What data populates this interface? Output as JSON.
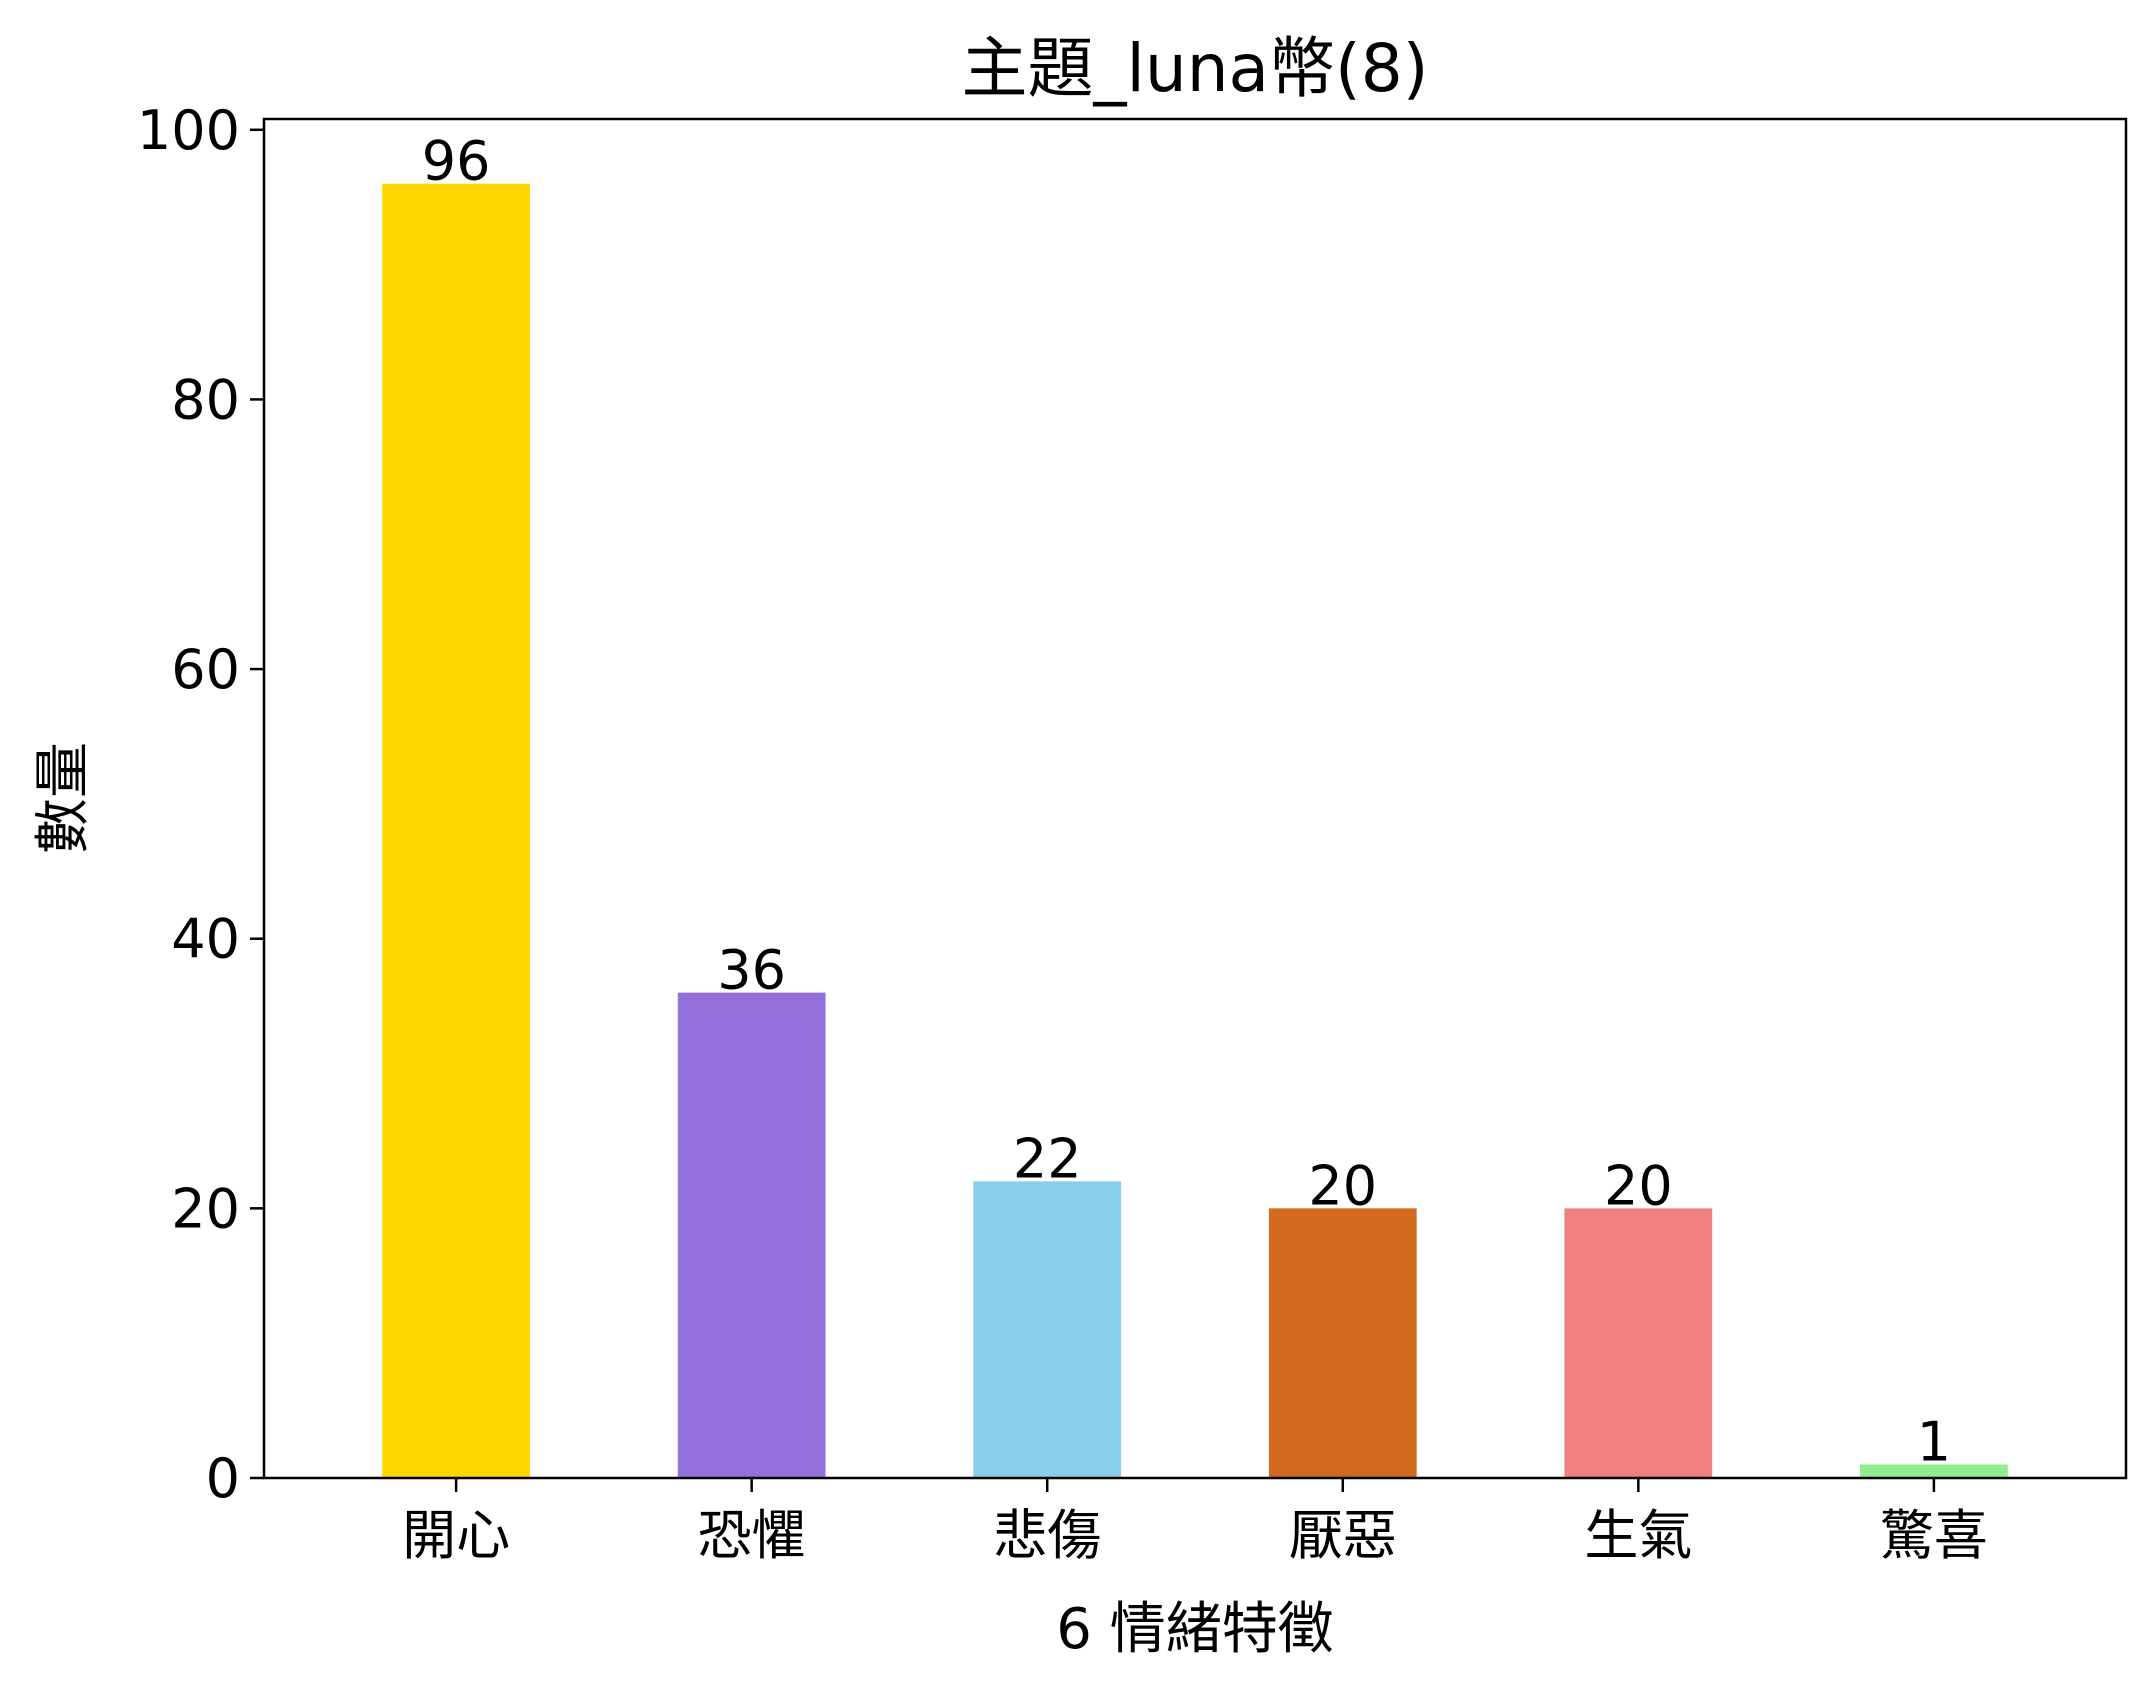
{
  "chart_data": {
    "type": "bar",
    "title": "主題_luna幣(8)",
    "xlabel": "6 情緒特徵",
    "ylabel": "數量",
    "categories": [
      "開心",
      "恐懼",
      "悲傷",
      "厭惡",
      "生氣",
      "驚喜"
    ],
    "values": [
      96,
      36,
      22,
      20,
      20,
      1
    ],
    "colors": [
      "#FFD700",
      "#9370DB",
      "#87CEEB",
      "#D2691E",
      "#F08080",
      "#90EE90"
    ],
    "data_labels": [
      "96",
      "36",
      "22",
      "20",
      "20",
      "1"
    ],
    "ylim": [
      0,
      100.8
    ],
    "yticks": [
      0,
      20,
      40,
      60,
      80,
      100
    ],
    "ytick_labels": [
      "0",
      "20",
      "40",
      "60",
      "80",
      "100"
    ],
    "grid": false,
    "legend": "none"
  }
}
